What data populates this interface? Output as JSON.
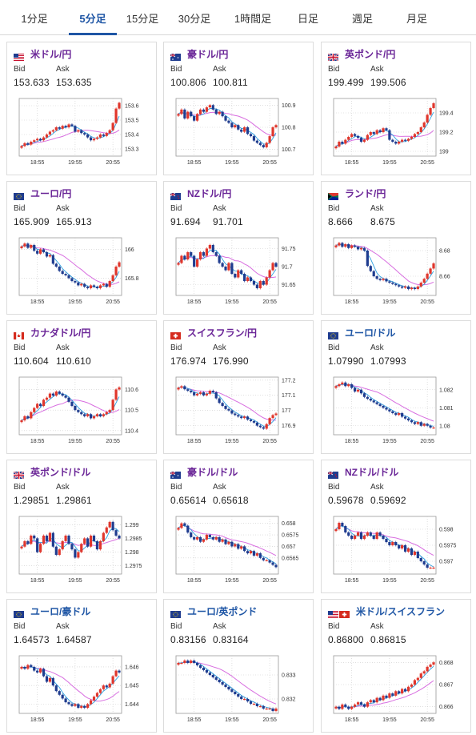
{
  "tabs": [
    {
      "label": "1分足",
      "active": false
    },
    {
      "label": "5分足",
      "active": true
    },
    {
      "label": "15分足",
      "active": false
    },
    {
      "label": "30分足",
      "active": false
    },
    {
      "label": "1時間足",
      "active": false
    },
    {
      "label": "日足",
      "active": false
    },
    {
      "label": "週足",
      "active": false
    },
    {
      "label": "月足",
      "active": false
    }
  ],
  "labels": {
    "bid": "Bid",
    "ask": "Ask"
  },
  "colors": {
    "up": "#e0362c",
    "down": "#1f3c8f",
    "ma1": "#2d9fdf",
    "ma2": "#d86ee0",
    "title_purple": "#6a2597",
    "title_blue": "#1f56a5",
    "tab_active": "#1f56a5"
  },
  "pairs": [
    {
      "name": "米ドル/円",
      "flag": "us-flag",
      "bid": "153.633",
      "ask": "153.635",
      "title_color": "purple",
      "chart_data": {
        "type": "candlestick",
        "x_ticks": [
          "18:55",
          "19:55",
          "20:55"
        ],
        "y_ticks": [
          "153.6",
          "153.5",
          "153.4",
          "153.3"
        ],
        "y_tick_values": [
          153.6,
          153.5,
          153.4,
          153.3
        ],
        "ylim": [
          153.25,
          153.65
        ],
        "close": [
          153.32,
          153.34,
          153.33,
          153.35,
          153.36,
          153.37,
          153.36,
          153.38,
          153.4,
          153.42,
          153.43,
          153.45,
          153.44,
          153.46,
          153.45,
          153.47,
          153.46,
          153.42,
          153.43,
          153.41,
          153.4,
          153.38,
          153.36,
          153.37,
          153.38,
          153.4,
          153.39,
          153.41,
          153.43,
          153.48,
          153.58,
          153.62
        ]
      }
    },
    {
      "name": "豪ドル/円",
      "flag": "au-flag",
      "bid": "100.806",
      "ask": "100.811",
      "title_color": "purple",
      "chart_data": {
        "type": "candlestick",
        "x_ticks": [
          "18:55",
          "19:55",
          "20:55"
        ],
        "y_ticks": [
          "100.9",
          "100.8",
          "100.7"
        ],
        "y_tick_values": [
          100.9,
          100.8,
          100.7
        ],
        "ylim": [
          100.67,
          100.93
        ],
        "close": [
          100.86,
          100.88,
          100.84,
          100.87,
          100.85,
          100.83,
          100.86,
          100.88,
          100.87,
          100.89,
          100.9,
          100.88,
          100.86,
          100.87,
          100.85,
          100.83,
          100.82,
          100.8,
          100.81,
          100.79,
          100.78,
          100.8,
          100.77,
          100.76,
          100.74,
          100.73,
          100.72,
          100.71,
          100.73,
          100.76,
          100.8,
          100.81
        ]
      }
    },
    {
      "name": "英ポンド/円",
      "flag": "uk-flag",
      "bid": "199.499",
      "ask": "199.506",
      "title_color": "purple",
      "chart_data": {
        "type": "candlestick",
        "x_ticks": [
          "18:55",
          "19:55",
          "20:55"
        ],
        "y_ticks": [
          "199.4",
          "199.2",
          "199"
        ],
        "y_tick_values": [
          199.4,
          199.2,
          199.0
        ],
        "ylim": [
          198.95,
          199.55
        ],
        "close": [
          199.05,
          199.1,
          199.08,
          199.12,
          199.15,
          199.18,
          199.16,
          199.14,
          199.1,
          199.12,
          199.17,
          199.2,
          199.18,
          199.22,
          199.2,
          199.24,
          199.22,
          199.12,
          199.1,
          199.08,
          199.1,
          199.12,
          199.11,
          199.13,
          199.15,
          199.18,
          199.2,
          199.25,
          199.3,
          199.38,
          199.45,
          199.5
        ]
      }
    },
    {
      "name": "ユーロ/円",
      "flag": "eu-flag",
      "bid": "165.909",
      "ask": "165.913",
      "title_color": "purple",
      "chart_data": {
        "type": "candlestick",
        "x_ticks": [
          "18:55",
          "19:55",
          "20:55"
        ],
        "y_ticks": [
          "166",
          "165.8"
        ],
        "y_tick_values": [
          166.0,
          165.8
        ],
        "ylim": [
          165.68,
          166.08
        ],
        "close": [
          166.02,
          166.04,
          166.01,
          166.03,
          165.99,
          165.97,
          166.0,
          165.98,
          165.95,
          165.96,
          165.9,
          165.88,
          165.85,
          165.83,
          165.82,
          165.8,
          165.78,
          165.77,
          165.75,
          165.76,
          165.74,
          165.73,
          165.75,
          165.74,
          165.73,
          165.75,
          165.76,
          165.74,
          165.78,
          165.82,
          165.88,
          165.91
        ]
      }
    },
    {
      "name": "NZドル/円",
      "flag": "nz-flag",
      "bid": "91.694",
      "ask": "91.701",
      "title_color": "purple",
      "chart_data": {
        "type": "candlestick",
        "x_ticks": [
          "18:55",
          "19:55",
          "20:55"
        ],
        "y_ticks": [
          "91.75",
          "91.7",
          "91.65"
        ],
        "y_tick_values": [
          91.75,
          91.7,
          91.65
        ],
        "ylim": [
          91.62,
          91.78
        ],
        "close": [
          91.71,
          91.73,
          91.72,
          91.74,
          91.73,
          91.7,
          91.72,
          91.74,
          91.73,
          91.75,
          91.76,
          91.74,
          91.73,
          91.71,
          91.7,
          91.69,
          91.71,
          91.68,
          91.67,
          91.69,
          91.68,
          91.66,
          91.67,
          91.66,
          91.65,
          91.64,
          91.66,
          91.65,
          91.67,
          91.69,
          91.71,
          91.7
        ]
      }
    },
    {
      "name": "ランド/円",
      "flag": "za-flag",
      "bid": "8.666",
      "ask": "8.675",
      "title_color": "purple",
      "chart_data": {
        "type": "candlestick",
        "x_ticks": [
          "18:55",
          "19:55",
          "20:55"
        ],
        "y_ticks": [
          "8.68",
          "8.66"
        ],
        "y_tick_values": [
          8.68,
          8.66
        ],
        "ylim": [
          8.645,
          8.69
        ],
        "close": [
          8.684,
          8.686,
          8.683,
          8.685,
          8.682,
          8.684,
          8.683,
          8.681,
          8.682,
          8.68,
          8.668,
          8.664,
          8.66,
          8.658,
          8.657,
          8.658,
          8.656,
          8.655,
          8.654,
          8.653,
          8.652,
          8.651,
          8.652,
          8.65,
          8.651,
          8.65,
          8.652,
          8.655,
          8.658,
          8.662,
          8.666,
          8.67
        ]
      }
    },
    {
      "name": "カナダドル/円",
      "flag": "ca-flag",
      "bid": "110.604",
      "ask": "110.610",
      "title_color": "purple",
      "chart_data": {
        "type": "candlestick",
        "x_ticks": [
          "18:55",
          "19:55",
          "20:55"
        ],
        "y_ticks": [
          "110.6",
          "110.5",
          "110.4"
        ],
        "y_tick_values": [
          110.6,
          110.5,
          110.4
        ],
        "ylim": [
          110.38,
          110.66
        ],
        "close": [
          110.45,
          110.47,
          110.46,
          110.49,
          110.51,
          110.53,
          110.52,
          110.55,
          110.56,
          110.58,
          110.57,
          110.59,
          110.58,
          110.57,
          110.56,
          110.54,
          110.52,
          110.5,
          110.49,
          110.48,
          110.47,
          110.48,
          110.46,
          110.47,
          110.48,
          110.47,
          110.48,
          110.49,
          110.5,
          110.55,
          110.6,
          110.61
        ]
      }
    },
    {
      "name": "スイスフラン/円",
      "flag": "ch-flag",
      "bid": "176.974",
      "ask": "176.990",
      "title_color": "purple",
      "chart_data": {
        "type": "candlestick",
        "x_ticks": [
          "18:55",
          "19:55",
          "20:55"
        ],
        "y_ticks": [
          "177.2",
          "177.1",
          "177",
          "176.9"
        ],
        "y_tick_values": [
          177.2,
          177.1,
          177.0,
          176.9
        ],
        "ylim": [
          176.84,
          177.22
        ],
        "close": [
          177.15,
          177.16,
          177.14,
          177.13,
          177.12,
          177.1,
          177.11,
          177.12,
          177.1,
          177.11,
          177.13,
          177.12,
          177.08,
          177.05,
          177.03,
          177.01,
          177.0,
          176.98,
          176.97,
          176.96,
          176.95,
          176.96,
          176.94,
          176.93,
          176.92,
          176.9,
          176.89,
          176.88,
          176.91,
          176.95,
          176.97,
          176.98
        ]
      }
    },
    {
      "name": "ユーロ/ドル",
      "flag": "eu-flag",
      "bid": "1.07990",
      "ask": "1.07993",
      "title_color": "blue",
      "chart_data": {
        "type": "candlestick",
        "x_ticks": [
          "18:55",
          "19:55",
          "20:55"
        ],
        "y_ticks": [
          "1.082",
          "1.081",
          "1.08"
        ],
        "y_tick_values": [
          1.082,
          1.081,
          1.08
        ],
        "ylim": [
          1.0795,
          1.0827
        ],
        "close": [
          1.0822,
          1.0823,
          1.0824,
          1.0822,
          1.0823,
          1.0821,
          1.0819,
          1.082,
          1.0818,
          1.0816,
          1.0815,
          1.0814,
          1.0813,
          1.0812,
          1.0811,
          1.081,
          1.0809,
          1.0808,
          1.0807,
          1.0806,
          1.0807,
          1.0805,
          1.0804,
          1.0803,
          1.0802,
          1.0801,
          1.0802,
          1.08,
          1.0801,
          1.08,
          1.0799,
          1.0799
        ]
      }
    },
    {
      "name": "英ポンド/ドル",
      "flag": "uk-flag",
      "bid": "1.29851",
      "ask": "1.29861",
      "title_color": "purple",
      "chart_data": {
        "type": "candlestick",
        "x_ticks": [
          "18:55",
          "19:55",
          "20:55"
        ],
        "y_ticks": [
          "1.299",
          "1.2985",
          "1.298",
          "1.2975"
        ],
        "y_tick_values": [
          1.299,
          1.2985,
          1.298,
          1.2975
        ],
        "ylim": [
          1.2972,
          1.2993
        ],
        "close": [
          1.2982,
          1.2984,
          1.2983,
          1.2986,
          1.2985,
          1.298,
          1.2983,
          1.2986,
          1.2984,
          1.2987,
          1.2982,
          1.2979,
          1.2981,
          1.2984,
          1.2986,
          1.2983,
          1.2981,
          1.2978,
          1.298,
          1.2983,
          1.2985,
          1.2982,
          1.2986,
          1.2984,
          1.2981,
          1.2984,
          1.2987,
          1.2989,
          1.2991,
          1.2988,
          1.2986,
          1.2985
        ]
      }
    },
    {
      "name": "豪ドル/ドル",
      "flag": "au-flag",
      "bid": "0.65614",
      "ask": "0.65618",
      "title_color": "purple",
      "chart_data": {
        "type": "candlestick",
        "x_ticks": [
          "18:55",
          "19:55",
          "20:55"
        ],
        "y_ticks": [
          "0.658",
          "0.6575",
          "0.657",
          "0.6565"
        ],
        "y_tick_values": [
          0.658,
          0.6575,
          0.657,
          0.6565
        ],
        "ylim": [
          0.6558,
          0.6583
        ],
        "close": [
          0.6578,
          0.658,
          0.6579,
          0.6576,
          0.6574,
          0.6573,
          0.6574,
          0.6572,
          0.6573,
          0.6575,
          0.6574,
          0.6573,
          0.6574,
          0.6572,
          0.6573,
          0.6571,
          0.6572,
          0.657,
          0.6571,
          0.6569,
          0.657,
          0.6568,
          0.6567,
          0.6568,
          0.6566,
          0.6567,
          0.6565,
          0.6564,
          0.6564,
          0.6563,
          0.6562,
          0.6561
        ]
      }
    },
    {
      "name": "NZドル/ドル",
      "flag": "nz-flag",
      "bid": "0.59678",
      "ask": "0.59692",
      "title_color": "purple",
      "chart_data": {
        "type": "candlestick",
        "x_ticks": [
          "18:55",
          "19:55",
          "20:55"
        ],
        "y_ticks": [
          "0.598",
          "0.5975",
          "0.597"
        ],
        "y_tick_values": [
          0.598,
          0.5975,
          0.597
        ],
        "ylim": [
          0.5966,
          0.5984
        ],
        "close": [
          0.598,
          0.5982,
          0.5981,
          0.5979,
          0.5978,
          0.5977,
          0.5978,
          0.5979,
          0.5977,
          0.5978,
          0.5979,
          0.5978,
          0.5977,
          0.5979,
          0.5978,
          0.5977,
          0.5976,
          0.5975,
          0.5976,
          0.5975,
          0.5974,
          0.5975,
          0.5973,
          0.5974,
          0.5972,
          0.5973,
          0.5971,
          0.597,
          0.5969,
          0.5968,
          0.5968,
          0.5968
        ]
      }
    },
    {
      "name": "ユーロ/豪ドル",
      "flag": "eu-flag",
      "bid": "1.64573",
      "ask": "1.64587",
      "title_color": "blue",
      "chart_data": {
        "type": "candlestick",
        "x_ticks": [
          "18:55",
          "19:55",
          "20:55"
        ],
        "y_ticks": [
          "1.646",
          "1.645",
          "1.644"
        ],
        "y_tick_values": [
          1.646,
          1.645,
          1.644
        ],
        "ylim": [
          1.6435,
          1.6466
        ],
        "close": [
          1.646,
          1.6459,
          1.6461,
          1.646,
          1.6458,
          1.6457,
          1.6459,
          1.6455,
          1.6452,
          1.6454,
          1.645,
          1.6447,
          1.6445,
          1.6443,
          1.6441,
          1.644,
          1.6439,
          1.644,
          1.6438,
          1.6439,
          1.6438,
          1.644,
          1.6442,
          1.6444,
          1.6446,
          1.6448,
          1.645,
          1.6449,
          1.6451,
          1.6455,
          1.6458,
          1.6457
        ]
      }
    },
    {
      "name": "ユーロ/英ポンド",
      "flag": "eu-flag",
      "bid": "0.83156",
      "ask": "0.83164",
      "title_color": "blue",
      "chart_data": {
        "type": "candlestick",
        "x_ticks": [
          "18:55",
          "19:55",
          "20:55"
        ],
        "y_ticks": [
          "0.833",
          "0.832"
        ],
        "y_tick_values": [
          0.833,
          0.832
        ],
        "ylim": [
          0.8314,
          0.8338
        ],
        "close": [
          0.8335,
          0.8335,
          0.8336,
          0.8335,
          0.8336,
          0.8335,
          0.8334,
          0.8333,
          0.8332,
          0.8331,
          0.833,
          0.8329,
          0.8328,
          0.8327,
          0.8326,
          0.8325,
          0.8324,
          0.8323,
          0.8322,
          0.8321,
          0.832,
          0.832,
          0.8319,
          0.8318,
          0.8318,
          0.8317,
          0.8317,
          0.8316,
          0.8316,
          0.8316,
          0.8315,
          0.8316
        ]
      }
    },
    {
      "name": "米ドル/スイスフラン",
      "flag": "us-ch-flag",
      "bid": "0.86800",
      "ask": "0.86815",
      "title_color": "blue",
      "chart_data": {
        "type": "candlestick",
        "x_ticks": [
          "18:55",
          "19:55",
          "20:55"
        ],
        "y_ticks": [
          "0.868",
          "0.867",
          "0.866"
        ],
        "y_tick_values": [
          0.868,
          0.867,
          0.866
        ],
        "ylim": [
          0.8657,
          0.8683
        ],
        "close": [
          0.866,
          0.8659,
          0.8661,
          0.866,
          0.8659,
          0.866,
          0.8661,
          0.8662,
          0.8661,
          0.866,
          0.8662,
          0.8663,
          0.8662,
          0.8664,
          0.8663,
          0.8665,
          0.8664,
          0.8666,
          0.8665,
          0.8667,
          0.8666,
          0.8668,
          0.8667,
          0.8669,
          0.867,
          0.8672,
          0.8673,
          0.8675,
          0.8676,
          0.8678,
          0.8679,
          0.868
        ]
      }
    }
  ]
}
